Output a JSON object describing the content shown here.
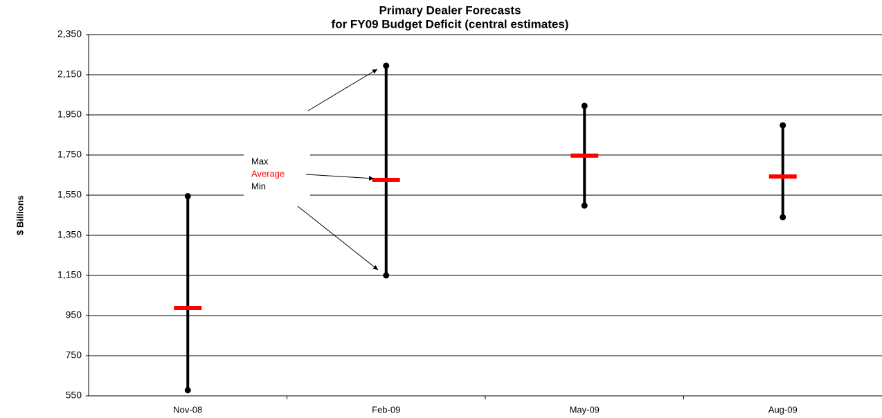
{
  "chart_data": {
    "type": "high-low",
    "title": "Primary Dealer Forecasts",
    "subtitle": "for FY09 Budget Deficit (central estimates)",
    "y_label": "$ Billions",
    "categories": [
      "Nov-08",
      "Feb-09",
      "May-09",
      "Aug-09"
    ],
    "series": [
      {
        "name": "Max",
        "color": "#000000",
        "values": [
          1545,
          2195,
          1995,
          1898
        ]
      },
      {
        "name": "Average",
        "color": "#ff0000",
        "values": [
          988,
          1626,
          1747,
          1643
        ]
      },
      {
        "name": "Min",
        "color": "#000000",
        "values": [
          578,
          1150,
          1498,
          1440
        ]
      }
    ],
    "ylim": [
      550,
      2350
    ],
    "yticks": [
      550,
      750,
      950,
      {
        "value": 1150,
        "label": "1,150"
      },
      {
        "value": 1350,
        "label": "1,350"
      },
      {
        "value": 1550,
        "label": "1,550"
      },
      {
        "value": 1750,
        "label": "1,750"
      },
      {
        "value": 1950,
        "label": "1,950"
      },
      {
        "value": 2150,
        "label": "2,150"
      },
      {
        "value": 2350,
        "label": "2,350"
      }
    ],
    "grid": true
  }
}
